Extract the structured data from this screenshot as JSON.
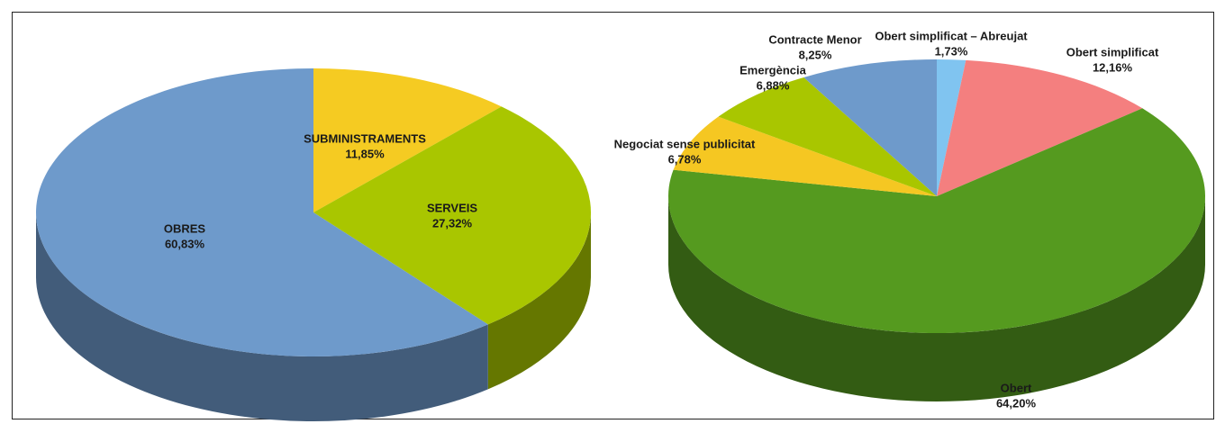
{
  "chart_data": [
    {
      "type": "pie",
      "categories": [
        "SUBMINISTRAMENTS",
        "SERVEIS",
        "OBRES"
      ],
      "values": [
        11.85,
        27.32,
        60.83
      ],
      "value_labels": [
        "11,85%",
        "27,32%",
        "60,83%"
      ],
      "colors": [
        "#f5cb22",
        "#a9c600",
        "#6e9acb"
      ]
    },
    {
      "type": "pie",
      "categories": [
        "Obert simplificat – Abreujat",
        "Obert simplificat",
        "Obert",
        "Negociat sense publicitat",
        "Emergència",
        "Contracte Menor"
      ],
      "values": [
        1.73,
        12.16,
        64.2,
        6.78,
        6.88,
        8.25
      ],
      "value_labels": [
        "1,73%",
        "12,16%",
        "64,20%",
        "6,78%",
        "6,88%",
        "8,25%"
      ],
      "colors": [
        "#80c4f0",
        "#f47f7f",
        "#559a1f",
        "#f5c722",
        "#a9c600",
        "#6e9acb"
      ]
    }
  ]
}
